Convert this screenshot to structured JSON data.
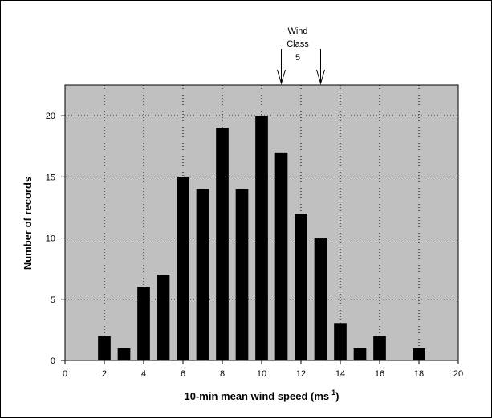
{
  "chart_data": {
    "type": "bar",
    "x": [
      2,
      3,
      4,
      5,
      6,
      7,
      8,
      9,
      10,
      11,
      12,
      13,
      14,
      15,
      16,
      17,
      18
    ],
    "values": [
      2,
      1,
      6,
      7,
      15,
      14,
      19,
      14,
      20,
      17,
      12,
      10,
      3,
      1,
      2,
      0,
      1
    ],
    "xlim": [
      0,
      20
    ],
    "ylim": [
      0,
      22.5
    ],
    "xticks": [
      "0",
      "2",
      "4",
      "6",
      "8",
      "10",
      "12",
      "14",
      "16",
      "18",
      "20"
    ],
    "yticks": [
      "0",
      "5",
      "10",
      "15",
      "20"
    ],
    "xlabel": "10-min mean wind speed (ms",
    "xlabel_superscript": "-1",
    "xlabel_suffix": ")",
    "ylabel": "Number of records",
    "grid": true,
    "plot_background": "#c0c0c0",
    "bar_color": "#000000",
    "annotation": {
      "lines": [
        "Wind",
        "Class",
        "5"
      ],
      "arrows_at_x": [
        11,
        13
      ]
    }
  }
}
